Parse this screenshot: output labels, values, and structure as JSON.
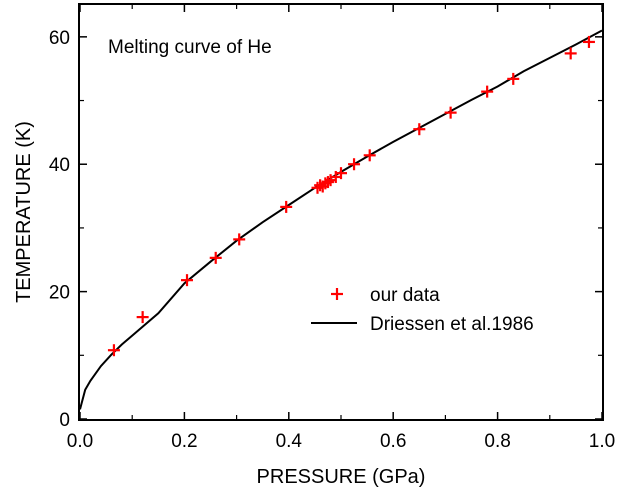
{
  "chart_data": {
    "type": "scatter",
    "title": "",
    "annotation": "Melting curve of He",
    "xlabel": "PRESSURE  (GPa)",
    "ylabel": "TEMPERATURE (K)",
    "xlim": [
      0.0,
      1.0
    ],
    "ylim": [
      0,
      65
    ],
    "xticks": [
      0.0,
      0.2,
      0.4,
      0.6,
      0.8,
      1.0
    ],
    "xtick_labels": [
      "0.0",
      "0.2",
      "0.4",
      "0.6",
      "0.8",
      "1.0"
    ],
    "yticks": [
      0,
      20,
      40,
      60
    ],
    "ytick_labels": [
      "0",
      "20",
      "40",
      "60"
    ],
    "grid": false,
    "legend_placement": "lower-right",
    "series": [
      {
        "name": "our data",
        "kind": "scatter",
        "marker": "plus",
        "color": "#ff0000",
        "x": [
          0.065,
          0.12,
          0.205,
          0.26,
          0.305,
          0.395,
          0.455,
          0.46,
          0.465,
          0.47,
          0.475,
          0.48,
          0.49,
          0.5,
          0.525,
          0.555,
          0.65,
          0.71,
          0.78,
          0.83,
          0.94,
          0.975
        ],
        "y": [
          10.8,
          16.0,
          21.8,
          25.3,
          28.2,
          33.3,
          36.3,
          36.7,
          36.5,
          37.0,
          37.2,
          37.5,
          38.0,
          38.6,
          40.0,
          41.4,
          45.5,
          48.1,
          51.4,
          53.4,
          57.4,
          59.2
        ]
      },
      {
        "name": "Driessen et al.1986",
        "kind": "line",
        "color": "#000000",
        "x": [
          0.0,
          0.01,
          0.02,
          0.04,
          0.06,
          0.08,
          0.1,
          0.15,
          0.2,
          0.25,
          0.3,
          0.35,
          0.4,
          0.45,
          0.5,
          0.55,
          0.6,
          0.65,
          0.7,
          0.75,
          0.8,
          0.85,
          0.9,
          0.95,
          1.0
        ],
        "y": [
          1.5,
          4.6,
          6.0,
          8.3,
          10.1,
          11.7,
          13.1,
          16.6,
          21.3,
          24.7,
          28.0,
          30.9,
          33.6,
          36.3,
          38.8,
          41.2,
          43.5,
          45.7,
          47.9,
          50.1,
          52.2,
          54.6,
          56.7,
          58.8,
          61.0
        ]
      }
    ]
  }
}
